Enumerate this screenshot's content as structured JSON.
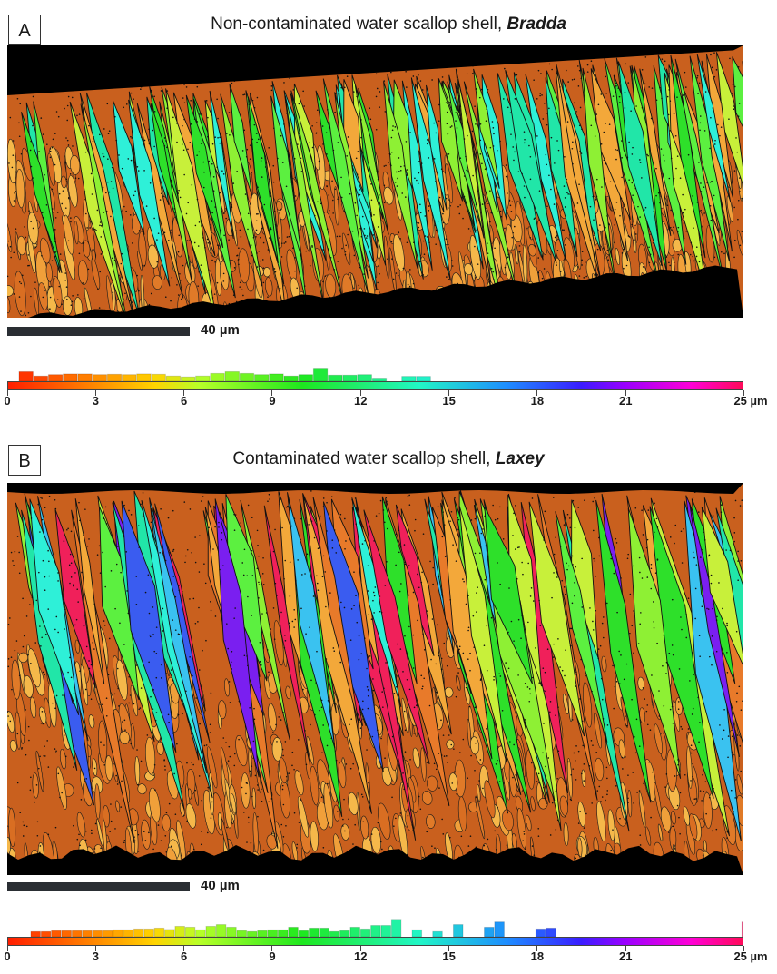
{
  "panels": [
    {
      "letter": "A",
      "title_prefix": "Non-contaminated water scallop shell, ",
      "title_site": "Bradda",
      "scale_label": "40 µm",
      "histogram": [
        0.55,
        0.3,
        0.38,
        0.42,
        0.42,
        0.38,
        0.4,
        0.38,
        0.42,
        0.4,
        0.3,
        0.25,
        0.3,
        0.45,
        0.55,
        0.45,
        0.38,
        0.42,
        0.3,
        0.38,
        0.75,
        0.35,
        0.35,
        0.38,
        0.18,
        0,
        0.28,
        0.28
      ],
      "hist_start": 0.4,
      "hist_bin": 0.5
    },
    {
      "letter": "B",
      "title_prefix": "Contaminated water scallop shell, ",
      "title_site": "Laxey",
      "scale_label": "40 µm",
      "histogram": [
        0.3,
        0.3,
        0.35,
        0.35,
        0.35,
        0.35,
        0.35,
        0.35,
        0.4,
        0.4,
        0.45,
        0.45,
        0.5,
        0.42,
        0.6,
        0.55,
        0.4,
        0.6,
        0.7,
        0.55,
        0.35,
        0.3,
        0.35,
        0.4,
        0.4,
        0.55,
        0.35,
        0.5,
        0.5,
        0.3,
        0.35,
        0.55,
        0.45,
        0.65,
        0.65,
        1.0,
        0,
        0.4,
        0,
        0.3,
        0,
        0.7,
        0,
        0,
        0.55,
        0.85,
        0,
        0,
        0,
        0.45,
        0.5,
        0,
        0,
        0,
        0,
        0,
        0,
        0,
        0,
        0,
        0,
        0,
        0,
        0,
        0,
        0,
        0,
        0,
        0,
        0.85
      ],
      "hist_start": 0.8,
      "hist_bin": 0.35
    }
  ],
  "colorbar": {
    "ticks": [
      "0",
      "3",
      "6",
      "9",
      "12",
      "15",
      "18",
      "21"
    ],
    "end_label": "25 µm",
    "tick_values": [
      0,
      3,
      6,
      9,
      12,
      15,
      18,
      21,
      25
    ],
    "max": 25
  },
  "grain_palette": [
    "#2ee02a",
    "#5cf040",
    "#8ef034",
    "#c8f03a",
    "#21e6a8",
    "#2ef0d8",
    "#f3a83a",
    "#e87a2a",
    "#3a5cf0",
    "#7a1ff0",
    "#f0205a",
    "#3ac2f0"
  ]
}
